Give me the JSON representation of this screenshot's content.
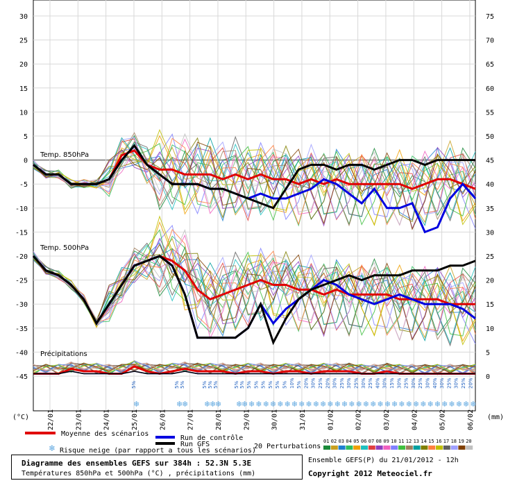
{
  "chart_data": {
    "type": "line",
    "left_axis": {
      "unit": "(°C)",
      "ticks": [
        30,
        25,
        20,
        15,
        10,
        5,
        0,
        -5,
        -10,
        -15,
        -20,
        -25,
        -30,
        -35,
        -40,
        -45
      ]
    },
    "right_axis": {
      "unit": "(mm)",
      "ticks": [
        75,
        70,
        65,
        60,
        55,
        50,
        45,
        40,
        35,
        30,
        25,
        20,
        15,
        10,
        5,
        0
      ]
    },
    "dates": [
      "22/01",
      "23/01",
      "24/01",
      "25/01",
      "26/01",
      "27/01",
      "28/01",
      "29/01",
      "30/01",
      "31/01",
      "01/02",
      "02/02",
      "03/02",
      "04/02",
      "05/02",
      "06/02"
    ],
    "panel_labels": {
      "t850": "Temp. 850hPa",
      "t500": "Temp. 500hPa",
      "precip": "Précipitations"
    },
    "snow_risk_labels": [
      "5%",
      "5%",
      "5%",
      "5%",
      "5%",
      "5%",
      "5%",
      "5%",
      "5%",
      "5%",
      "5%",
      "5%",
      "5%",
      "5%",
      "10%",
      "5%",
      "20%",
      "30%",
      "25%",
      "20%",
      "30%",
      "25%",
      "30%",
      "25%",
      "30%",
      "25%",
      "40%",
      "30%",
      "15%",
      "30%",
      "25%",
      "30%",
      "25%",
      "30%",
      "40%",
      "30%",
      "25%",
      "30%",
      "25%",
      "20%",
      "30%",
      "20%",
      "30%",
      "25%",
      "30%",
      "30%",
      "20%",
      "30%"
    ],
    "series": [
      {
        "name": "Moyenne des scénarios",
        "color": "#e00000",
        "t850": [
          -1,
          -3,
          -3,
          -5,
          -5,
          -5,
          -4,
          1,
          2,
          -1,
          -2,
          -2,
          -3,
          -3,
          -3,
          -4,
          -3,
          -4,
          -3,
          -4,
          -4,
          -5,
          -4,
          -5,
          -4,
          -5,
          -5,
          -5,
          -5,
          -5,
          -6,
          -5,
          -4,
          -4,
          -5,
          -6
        ],
        "t500": [
          -20,
          -23,
          -24,
          -26,
          -29,
          -34,
          -30,
          -26,
          -22,
          -21,
          -20,
          -21,
          -23,
          -27,
          -29,
          -28,
          -27,
          -26,
          -25,
          -26,
          -26,
          -27,
          -27,
          -28,
          -27,
          -28,
          -28,
          -28,
          -28,
          -29,
          -29,
          -29,
          -29,
          -30,
          -30,
          -30
        ],
        "precip": [
          0.5,
          0.5,
          0.5,
          1.5,
          1,
          1,
          0.5,
          0.5,
          2,
          1,
          0.5,
          1,
          1.5,
          1,
          1,
          1,
          0.5,
          1,
          1,
          0.5,
          1,
          1,
          0.5,
          1,
          1,
          1,
          0.5,
          0.5,
          1,
          0.5,
          0.5,
          0.5,
          0.5,
          0.5,
          0.5,
          0.5
        ]
      },
      {
        "name": "Run de contrôle",
        "color": "#0000e0",
        "t850": [
          -1,
          -3,
          -3,
          -5,
          -5,
          -5,
          -4,
          0,
          3,
          -1,
          -3,
          -5,
          -5,
          -5,
          -6,
          -6,
          -7,
          -8,
          -7,
          -8,
          -8,
          -7,
          -6,
          -4,
          -5,
          -7,
          -9,
          -6,
          -10,
          -10,
          -9,
          -15,
          -14,
          -8,
          -5,
          -8
        ],
        "t500": [
          -20,
          -23,
          -24,
          -26,
          -29,
          -34,
          -30,
          -26,
          -22,
          -21,
          -20,
          -22,
          -28,
          -37,
          -37,
          -37,
          -37,
          -35,
          -30,
          -34,
          -31,
          -29,
          -27,
          -25,
          -26,
          -28,
          -29,
          -30,
          -29,
          -28,
          -29,
          -30,
          -30,
          -30,
          -31,
          -33
        ],
        "precip": [
          0.5,
          0.5,
          0.5,
          1,
          0.5,
          0.5,
          0.5,
          0.5,
          1,
          0.5,
          0.5,
          0.5,
          1,
          0.5,
          0.5,
          0.5,
          0.5,
          0.5,
          0.5,
          0.5,
          0.5,
          0.5,
          0.5,
          0.5,
          0.5,
          0.5,
          0.5,
          0.5,
          0.5,
          0.5,
          0.5,
          0.5,
          0.5,
          0.5,
          0.5,
          0.5
        ]
      },
      {
        "name": "Run GFS",
        "color": "#000000",
        "t850": [
          -1,
          -3,
          -3,
          -5,
          -5,
          -5,
          -4,
          0,
          3,
          -1,
          -3,
          -5,
          -5,
          -5,
          -6,
          -6,
          -7,
          -8,
          -9,
          -10,
          -6,
          -2,
          -1,
          -1,
          -2,
          -1,
          -1,
          -2,
          -1,
          0,
          0,
          -1,
          0,
          0,
          0,
          0
        ],
        "t500": [
          -20,
          -23,
          -24,
          -26,
          -29,
          -34,
          -30,
          -26,
          -22,
          -21,
          -20,
          -22,
          -28,
          -37,
          -37,
          -37,
          -37,
          -35,
          -30,
          -38,
          -33,
          -29,
          -27,
          -26,
          -25,
          -24,
          -25,
          -24,
          -24,
          -24,
          -23,
          -23,
          -23,
          -22,
          -22,
          -21
        ],
        "precip": [
          0.5,
          0.5,
          0.5,
          1,
          0.5,
          0.5,
          0.5,
          0.5,
          1,
          0.5,
          0.5,
          0.5,
          1,
          0.5,
          0.5,
          0.5,
          0.5,
          0.5,
          0.5,
          0.5,
          0.5,
          0.5,
          0.5,
          0.5,
          0.5,
          0.5,
          0.5,
          0.5,
          0.5,
          0.5,
          0.5,
          0.5,
          0.5,
          0.5,
          0.5,
          0.5
        ]
      }
    ],
    "perturbation_count_label": "20 Perturbations",
    "perturbation_ids": [
      "01",
      "02",
      "03",
      "04",
      "05",
      "06",
      "07",
      "08",
      "09",
      "10",
      "11",
      "12",
      "13",
      "14",
      "15",
      "16",
      "17",
      "18",
      "19",
      "20"
    ],
    "perturbation_colors": [
      "#1a8a3a",
      "#c8a020",
      "#2080d0",
      "#30c060",
      "#f0a000",
      "#20c0c0",
      "#e04040",
      "#9040c0",
      "#f060c0",
      "#8080ff",
      "#40c040",
      "#a08060",
      "#00a0a0",
      "#808000",
      "#ff8040",
      "#c0c000",
      "#606060",
      "#a0a0ff",
      "#804000",
      "#c0c0c0"
    ]
  },
  "legend": {
    "mean": "Moyenne des scénarios",
    "control": "Run de contrôle",
    "gfs": "Run GFS",
    "snow": "Risque neige (par rapport a tous les scénarios)",
    "perturbations": "20 Perturbations"
  },
  "footer": {
    "title": "Diagramme des ensembles GEFS sur 384h : 52.3N 5.3E",
    "subtitle": "Températures 850hPa et 500hPa (°C) , précipitations (mm)",
    "run_info": "Ensemble GEFS(P) du 21/01/2012 - 12h",
    "copyright": "Copyright 2012 Meteociel.fr"
  }
}
